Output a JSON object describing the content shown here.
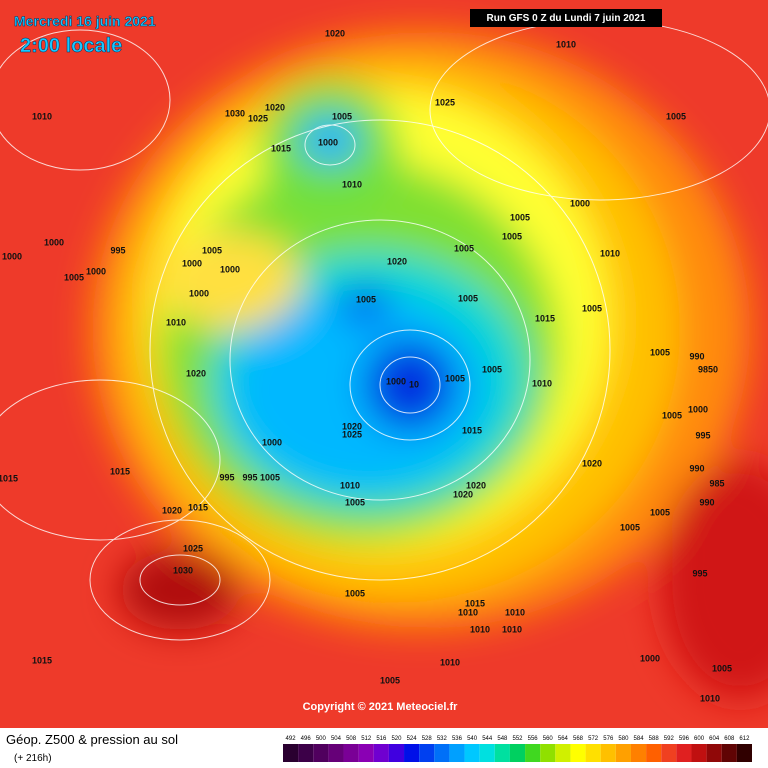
{
  "header": {
    "date": "Mercredi 16 juin 2021",
    "time": "2:00 locale",
    "run": "Run GFS 0 Z du Lundi 7 juin 2021"
  },
  "isobar_labels": [
    "1010",
    "1020",
    "1010",
    "1030",
    "1020",
    "1025",
    "1025",
    "1005",
    "1000",
    "1005",
    "1015",
    "1010",
    "1000",
    "1005",
    "1005",
    "995",
    "1000",
    "1000",
    "1005",
    "1005",
    "1000",
    "1000",
    "1005",
    "1000",
    "1020",
    "1010",
    "1000",
    "1005",
    "1005",
    "1005",
    "1015",
    "1010",
    "1005",
    "990",
    "9850",
    "1020",
    "1005",
    "1005",
    "1000",
    "10",
    "1010",
    "1000",
    "1005",
    "1015",
    "1020",
    "1025",
    "1000",
    "995",
    "1015",
    "1015",
    "995",
    "995",
    "1005",
    "1020",
    "990",
    "985",
    "1010",
    "1020",
    "1020",
    "1005",
    "990",
    "1020",
    "1015",
    "1005",
    "1005",
    "1025",
    "1030",
    "995",
    "1005",
    "1015",
    "1010",
    "1010",
    "1010",
    "1010",
    "1015",
    "1000",
    "1010",
    "1005",
    "1005",
    "1010"
  ],
  "copyright": "Copyright © 2021 Meteociel.fr",
  "footer": {
    "title": "Géop. Z500 & pression au sol",
    "subtitle": "(+ 216h)"
  },
  "scale": [
    {
      "label": "492",
      "color": "#2a0030"
    },
    {
      "label": "496",
      "color": "#3c0048"
    },
    {
      "label": "500",
      "color": "#50005e"
    },
    {
      "label": "504",
      "color": "#660078"
    },
    {
      "label": "508",
      "color": "#7a0096"
    },
    {
      "label": "512",
      "color": "#8a00b4"
    },
    {
      "label": "516",
      "color": "#7000d0"
    },
    {
      "label": "520",
      "color": "#4000e0"
    },
    {
      "label": "524",
      "color": "#0010e8"
    },
    {
      "label": "528",
      "color": "#0040f0"
    },
    {
      "label": "532",
      "color": "#0070f8"
    },
    {
      "label": "536",
      "color": "#00a0ff"
    },
    {
      "label": "540",
      "color": "#00c8ff"
    },
    {
      "label": "544",
      "color": "#00e0e0"
    },
    {
      "label": "548",
      "color": "#00e0a0"
    },
    {
      "label": "552",
      "color": "#00d060"
    },
    {
      "label": "556",
      "color": "#40d820"
    },
    {
      "label": "560",
      "color": "#90e000"
    },
    {
      "label": "564",
      "color": "#d0f000"
    },
    {
      "label": "568",
      "color": "#ffff00"
    },
    {
      "label": "572",
      "color": "#ffe000"
    },
    {
      "label": "576",
      "color": "#ffc000"
    },
    {
      "label": "580",
      "color": "#ffa000"
    },
    {
      "label": "584",
      "color": "#ff8000"
    },
    {
      "label": "588",
      "color": "#ff6000"
    },
    {
      "label": "592",
      "color": "#f04020"
    },
    {
      "label": "596",
      "color": "#e02020"
    },
    {
      "label": "600",
      "color": "#c01010"
    },
    {
      "label": "604",
      "color": "#900808"
    },
    {
      "label": "608",
      "color": "#600404"
    },
    {
      "label": "612",
      "color": "#300000"
    }
  ]
}
